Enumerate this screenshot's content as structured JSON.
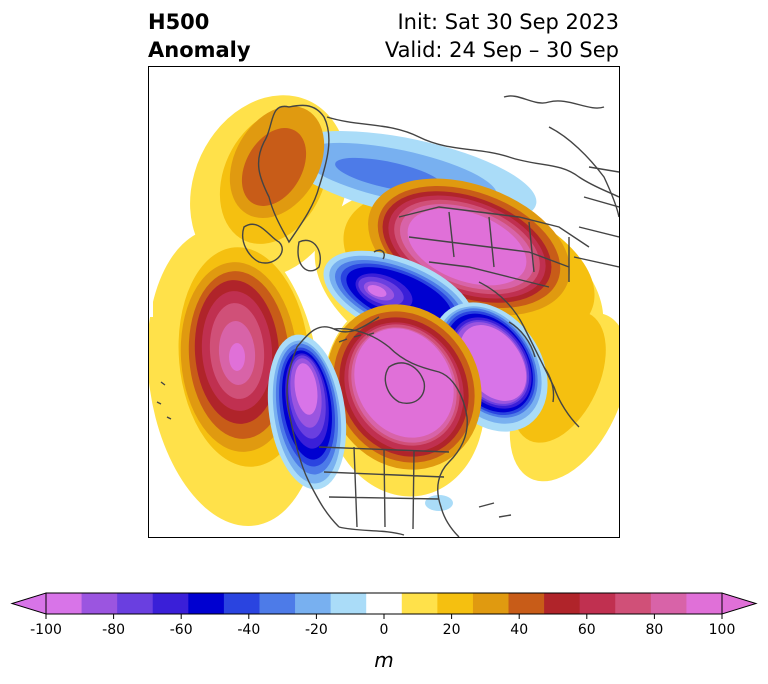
{
  "title": {
    "left_line1": "H500",
    "left_line2": "Anomaly",
    "right_line1": "Init: Sat 30 Sep 2023",
    "right_line2": "Valid: 24 Sep – 30 Sep"
  },
  "colorbar": {
    "unit_label": "m",
    "ticks": [
      "-100",
      "-80",
      "-60",
      "-40",
      "-20",
      "0",
      "20",
      "40",
      "60",
      "80",
      "100"
    ],
    "levels": [
      -100,
      -90,
      -80,
      -70,
      -60,
      -50,
      -40,
      -30,
      -20,
      -10,
      10,
      20,
      30,
      40,
      50,
      60,
      70,
      80,
      90,
      100
    ],
    "colors": [
      "#d874e8",
      "#9b55e0",
      "#6a3fe0",
      "#3a1fd8",
      "#0000d0",
      "#2a44e0",
      "#4d7be8",
      "#78b0f0",
      "#aadcf8",
      "#ffffff",
      "#ffe14a",
      "#f5c010",
      "#e09a10",
      "#c85c18",
      "#b0242a",
      "#c03050",
      "#d05078",
      "#d863a8",
      "#e070d8"
    ],
    "under_color": "#d874e8",
    "over_color": "#e070d8"
  },
  "map": {
    "anomalies": [
      {
        "name": "greenland-arctic-positive",
        "peak": 40
      },
      {
        "name": "arctic-ocean-negative",
        "peak": -30
      },
      {
        "name": "siberia-positive",
        "peak": 100
      },
      {
        "name": "north-pacific-positive",
        "peak": 100
      },
      {
        "name": "alaska-bering-negative",
        "peak": -100
      },
      {
        "name": "canada-positive",
        "peak": 100
      },
      {
        "name": "west-us-negative",
        "peak": -100
      },
      {
        "name": "east-asia-negative",
        "peak": -100
      },
      {
        "name": "atlantic-small-negative",
        "peak": -20
      }
    ]
  }
}
